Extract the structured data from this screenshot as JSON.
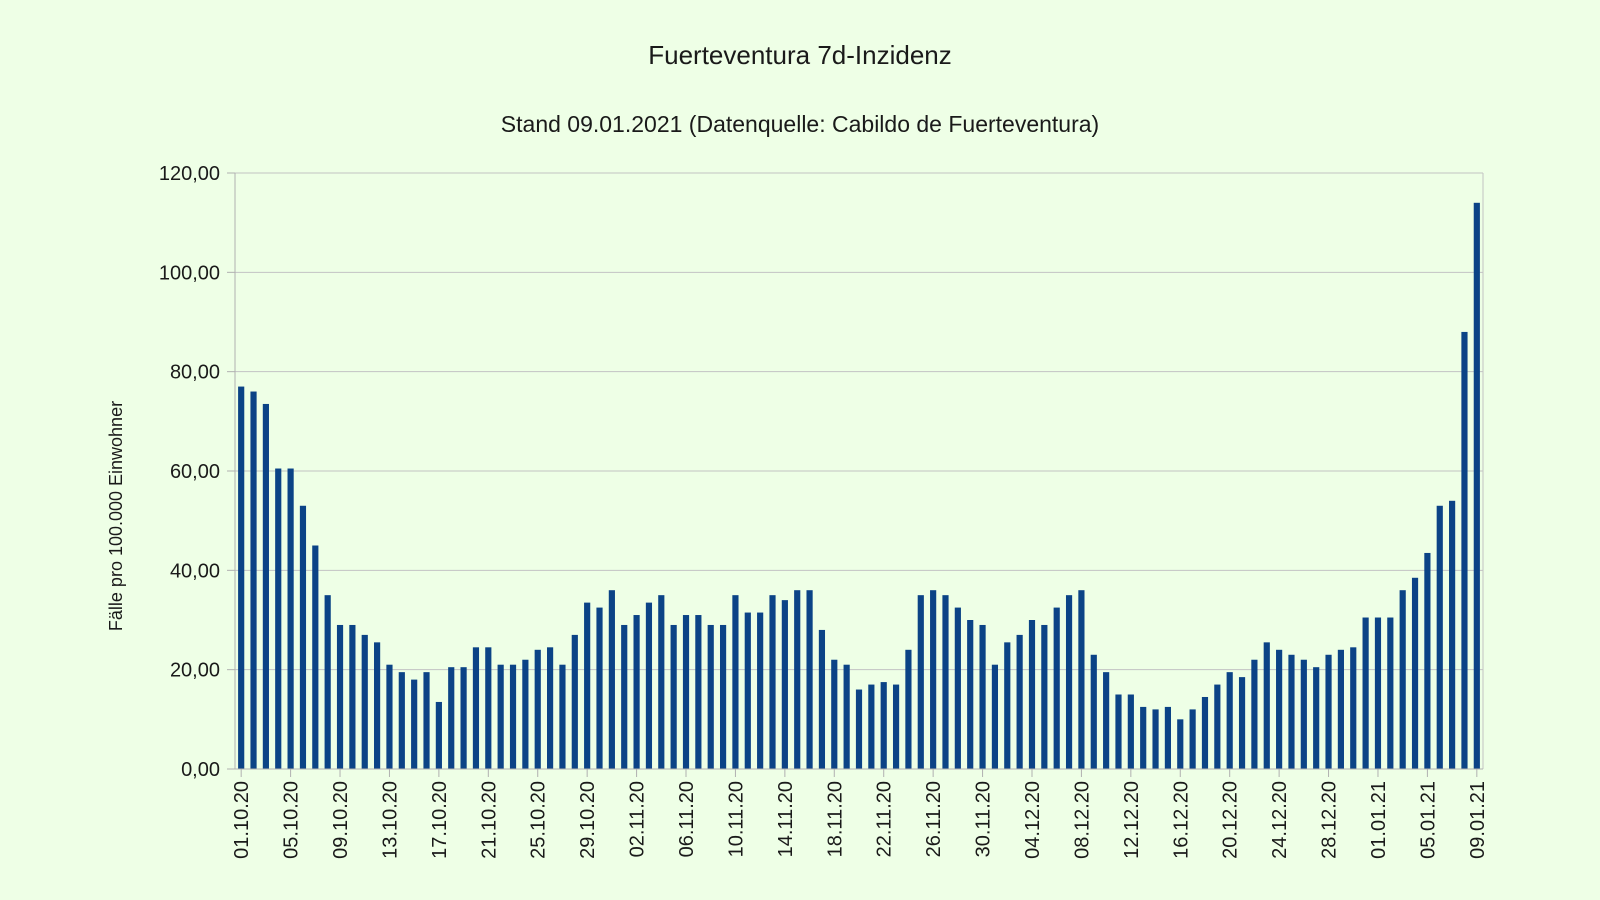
{
  "chart_data": {
    "type": "bar",
    "title": "Fuerteventura 7d-Inzidenz",
    "subtitle": "Stand 09.01.2021 (Datenquelle: Cabildo de Fuerteventura)",
    "ylabel": "Fälle pro 100.000 Einwohner",
    "xlabel": "",
    "ylim": [
      0,
      120
    ],
    "yticks": [
      "0,00",
      "20,00",
      "40,00",
      "60,00",
      "80,00",
      "100,00",
      "120,00"
    ],
    "grid": true,
    "legend": "none",
    "bar_color": "#0b4386",
    "start_date": "01.10.20",
    "tick_labels": [
      "01.10.20",
      "05.10.20",
      "09.10.20",
      "13.10.20",
      "17.10.20",
      "21.10.20",
      "25.10.20",
      "29.10.20",
      "02.11.20",
      "06.11.20",
      "10.11.20",
      "14.11.20",
      "18.11.20",
      "22.11.20",
      "26.11.20",
      "30.11.20",
      "04.12.20",
      "08.12.20",
      "12.12.20",
      "16.12.20",
      "20.12.20",
      "24.12.20",
      "28.12.20",
      "01.01.21",
      "05.01.21",
      "09.01.21"
    ],
    "values": [
      77,
      76,
      73.5,
      60.5,
      60.5,
      53,
      45,
      35,
      29,
      29,
      27,
      25.5,
      21,
      19.5,
      18,
      19.5,
      13.5,
      20.5,
      20.5,
      24.5,
      24.5,
      21,
      21,
      22,
      24,
      24.5,
      21,
      27,
      33.5,
      32.5,
      36,
      29,
      31,
      33.5,
      35,
      29,
      31,
      31,
      29,
      29,
      35,
      31.5,
      31.5,
      35,
      34,
      36,
      36,
      28,
      22,
      21,
      16,
      17,
      17.5,
      17,
      24,
      35,
      36,
      35,
      32.5,
      30,
      29,
      21,
      25.5,
      27,
      30,
      29,
      32.5,
      35,
      36,
      23,
      19.5,
      15,
      15,
      12.5,
      12,
      12.5,
      10,
      12,
      14.5,
      17,
      19.5,
      18.5,
      22,
      25.5,
      24,
      23,
      22,
      20.5,
      23,
      24,
      24.5,
      30.5,
      30.5,
      30.5,
      36,
      38.5,
      43.5,
      53,
      54,
      88,
      114
    ]
  }
}
